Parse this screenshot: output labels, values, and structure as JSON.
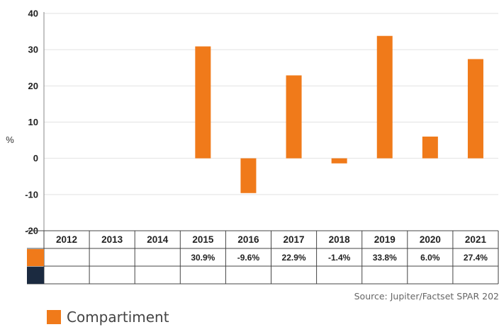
{
  "colors": {
    "series": "#F07A1A",
    "series2": "#1B2A40",
    "grid": "#E2E2E2",
    "axis": "#888888"
  },
  "chart_data": {
    "type": "bar",
    "ylabel": "%",
    "ylim": [
      -20,
      40
    ],
    "yticks": [
      40,
      30,
      20,
      10,
      0,
      -10,
      -20
    ],
    "categories": [
      "2012",
      "2013",
      "2014",
      "2015",
      "2016",
      "2017",
      "2018",
      "2019",
      "2020",
      "2021"
    ],
    "series": [
      {
        "name": "Compartiment",
        "values": [
          null,
          null,
          null,
          30.9,
          -9.6,
          22.9,
          -1.4,
          33.8,
          6.0,
          27.4
        ],
        "labels": [
          "",
          "",
          "",
          "30.9%",
          "-9.6%",
          "22.9%",
          "-1.4%",
          "33.8%",
          "6.0%",
          "27.4%"
        ]
      },
      {
        "values": [
          null,
          null,
          null,
          null,
          null,
          null,
          null,
          null,
          null,
          null
        ],
        "labels": [
          "",
          "",
          "",
          "",
          "",
          "",
          "",
          "",
          "",
          ""
        ]
      }
    ],
    "grid": true,
    "legend": "bottom-left",
    "source": "Source: Jupiter/Factset SPAR 202"
  }
}
